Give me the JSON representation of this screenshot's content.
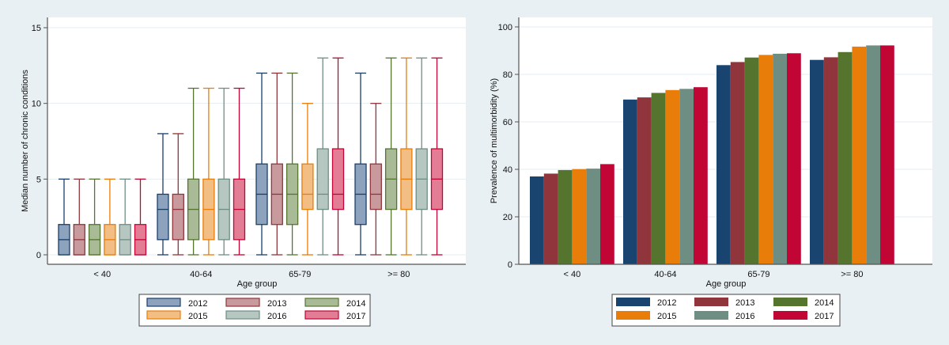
{
  "chart_data": [
    {
      "type": "boxplot",
      "title": "",
      "xlabel": "Age group",
      "ylabel": "Median number of chronic conditions",
      "ylim": [
        0,
        15
      ],
      "yticks": [
        0,
        5,
        10,
        15
      ],
      "grid": true,
      "legend_position": "bottom",
      "categories": [
        "< 40",
        "40-64",
        "65-79",
        ">= 80"
      ],
      "series": [
        {
          "name": "2012",
          "stroke": "#1a3f6b",
          "fill": "#8da3bd",
          "values": [
            {
              "min": 0,
              "q1": 0,
              "median": 1,
              "q3": 2,
              "max": 5
            },
            {
              "min": 0,
              "q1": 1,
              "median": 3,
              "q3": 4,
              "max": 8
            },
            {
              "min": 0,
              "q1": 2,
              "median": 4,
              "q3": 6,
              "max": 12
            },
            {
              "min": 0,
              "q1": 2,
              "median": 4,
              "q3": 6,
              "max": 12
            }
          ]
        },
        {
          "name": "2013",
          "stroke": "#90353b",
          "fill": "#c99a9d",
          "values": [
            {
              "min": 0,
              "q1": 0,
              "median": 1,
              "q3": 2,
              "max": 5
            },
            {
              "min": 0,
              "q1": 1,
              "median": 3,
              "q3": 4,
              "max": 8
            },
            {
              "min": 0,
              "q1": 2,
              "median": 4,
              "q3": 6,
              "max": 12
            },
            {
              "min": 0,
              "q1": 3,
              "median": 4,
              "q3": 6,
              "max": 10
            }
          ]
        },
        {
          "name": "2014",
          "stroke": "#55752f",
          "fill": "#a9ba97",
          "values": [
            {
              "min": 0,
              "q1": 0,
              "median": 1,
              "q3": 2,
              "max": 5
            },
            {
              "min": 0,
              "q1": 1,
              "median": 3,
              "q3": 5,
              "max": 11
            },
            {
              "min": 0,
              "q1": 2,
              "median": 4,
              "q3": 6,
              "max": 12
            },
            {
              "min": 0,
              "q1": 3,
              "median": 5,
              "q3": 7,
              "max": 13
            }
          ]
        },
        {
          "name": "2015",
          "stroke": "#e87d0a",
          "fill": "#f2be84",
          "values": [
            {
              "min": 0,
              "q1": 0,
              "median": 1,
              "q3": 2,
              "max": 5
            },
            {
              "min": 0,
              "q1": 1,
              "median": 3,
              "q3": 5,
              "max": 11
            },
            {
              "min": 0,
              "q1": 3,
              "median": 4,
              "q3": 6,
              "max": 10
            },
            {
              "min": 0,
              "q1": 3,
              "median": 5,
              "q3": 7,
              "max": 13
            }
          ]
        },
        {
          "name": "2016",
          "stroke": "#6e8e84",
          "fill": "#b6c6c1",
          "values": [
            {
              "min": 0,
              "q1": 0,
              "median": 1,
              "q3": 2,
              "max": 5
            },
            {
              "min": 0,
              "q1": 1,
              "median": 3,
              "q3": 5,
              "max": 11
            },
            {
              "min": 0,
              "q1": 3,
              "median": 4,
              "q3": 7,
              "max": 13
            },
            {
              "min": 0,
              "q1": 3,
              "median": 5,
              "q3": 7,
              "max": 13
            }
          ]
        },
        {
          "name": "2017",
          "stroke": "#c10534",
          "fill": "#e37d96",
          "values": [
            {
              "min": 0,
              "q1": 0,
              "median": 1,
              "q3": 2,
              "max": 5
            },
            {
              "min": 0,
              "q1": 1,
              "median": 3,
              "q3": 5,
              "max": 11
            },
            {
              "min": 0,
              "q1": 3,
              "median": 4,
              "q3": 7,
              "max": 13
            },
            {
              "min": 0,
              "q1": 3,
              "median": 5,
              "q3": 7,
              "max": 13
            }
          ]
        }
      ]
    },
    {
      "type": "bar",
      "title": "",
      "xlabel": "Age group",
      "ylabel": "Prevalence of multimorbidity (%)",
      "ylim": [
        0,
        100
      ],
      "yticks": [
        0,
        20,
        40,
        60,
        80,
        100
      ],
      "grid": true,
      "legend_position": "bottom",
      "categories": [
        "< 40",
        "40-64",
        "65-79",
        ">= 80"
      ],
      "series": [
        {
          "name": "2012",
          "color": "#1a4470",
          "values": [
            37.0,
            69.4,
            83.9,
            86.1
          ]
        },
        {
          "name": "2013",
          "color": "#90353b",
          "values": [
            38.2,
            70.3,
            85.2,
            87.2
          ]
        },
        {
          "name": "2014",
          "color": "#55752f",
          "values": [
            39.7,
            72.2,
            87.1,
            89.4
          ]
        },
        {
          "name": "2015",
          "color": "#e87d0a",
          "values": [
            40.1,
            73.4,
            88.2,
            91.7
          ]
        },
        {
          "name": "2016",
          "color": "#6e8e84",
          "values": [
            40.3,
            73.9,
            88.7,
            92.2
          ]
        },
        {
          "name": "2017",
          "color": "#c10534",
          "values": [
            42.2,
            74.6,
            88.9,
            92.2
          ]
        }
      ]
    }
  ]
}
